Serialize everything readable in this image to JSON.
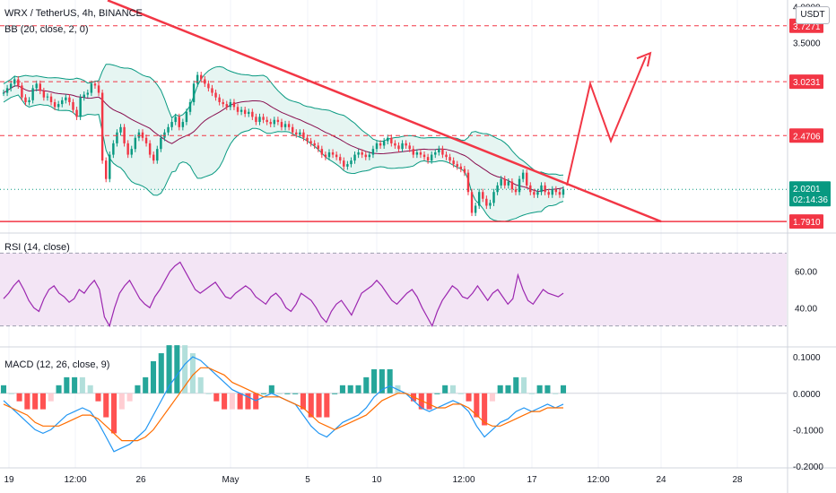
{
  "header": {
    "symbol_title": "WRX / TetherUS, 4h, BINANCE",
    "bb_label": "BB (20, close, 2, 0)",
    "rsi_label": "RSI (14, close)",
    "macd_label": "MACD (12, 26, close, 9)",
    "currency": "USDT"
  },
  "colors": {
    "red": "#f23645",
    "green": "#089981",
    "bb_line": "#089981",
    "bb_fill": "#e0f2ef",
    "basis": "#880e4f",
    "rsi_line": "#9c27b0",
    "rsi_fill": "#f3e5f5",
    "macd_line": "#2196f3",
    "signal_line": "#ff6d00"
  },
  "chart_data": {
    "type": "candlestick",
    "x_ticks": [
      "19",
      "12:00",
      "26",
      "May",
      "5",
      "10",
      "12:00",
      "17",
      "12:00",
      "24",
      "28"
    ],
    "price_axis_ticks": [
      "4.0000",
      "3.5000",
      "2.0201",
      "1.7910"
    ],
    "price_tags": {
      "levels": [
        "3.7271",
        "3.0231",
        "2.4706",
        "1.7910"
      ],
      "current_price": "2.0201",
      "countdown": "02:14:36"
    },
    "price_levels": [
      3.7271,
      3.0231,
      2.4706,
      1.791
    ],
    "current_price": 2.0201,
    "price_axis": [
      1.75,
      4.05
    ],
    "price_axis_log": true,
    "trendline": {
      "from_price": 4.1,
      "to_price": 1.791
    },
    "projection_prices": [
      2.05,
      3.0,
      2.42,
      3.32
    ],
    "bb": {
      "period": 20,
      "stddev": 2
    },
    "candles_approx": [
      2.9,
      2.95,
      3.0,
      3.05,
      2.98,
      2.85,
      2.8,
      2.82,
      2.95,
      3.0,
      2.92,
      2.85,
      2.86,
      2.8,
      2.75,
      2.78,
      2.82,
      2.85,
      2.8,
      2.72,
      2.65,
      2.85,
      2.88,
      2.9,
      3.0,
      2.98,
      2.9,
      2.25,
      2.1,
      2.3,
      2.4,
      2.5,
      2.55,
      2.4,
      2.3,
      2.35,
      2.45,
      2.5,
      2.45,
      2.4,
      2.3,
      2.25,
      2.35,
      2.45,
      2.5,
      2.55,
      2.6,
      2.65,
      2.55,
      2.6,
      2.7,
      2.8,
      3.0,
      3.1,
      3.05,
      3.0,
      2.95,
      2.9,
      2.85,
      2.8,
      2.78,
      2.75,
      2.8,
      2.75,
      2.7,
      2.72,
      2.68,
      2.7,
      2.65,
      2.6,
      2.65,
      2.62,
      2.6,
      2.58,
      2.62,
      2.6,
      2.55,
      2.58,
      2.55,
      2.5,
      2.48,
      2.5,
      2.45,
      2.42,
      2.4,
      2.38,
      2.35,
      2.3,
      2.28,
      2.32,
      2.3,
      2.28,
      2.25,
      2.2,
      2.22,
      2.25,
      2.3,
      2.32,
      2.3,
      2.28,
      2.3,
      2.35,
      2.4,
      2.38,
      2.42,
      2.45,
      2.4,
      2.38,
      2.35,
      2.4,
      2.38,
      2.35,
      2.3,
      2.32,
      2.3,
      2.28,
      2.25,
      2.3,
      2.32,
      2.35,
      2.3,
      2.28,
      2.25,
      2.22,
      2.2,
      2.18,
      2.15,
      2.0,
      1.85,
      1.9,
      2.0,
      1.95,
      1.9,
      1.92,
      2.0,
      2.05,
      2.1,
      2.05,
      2.08,
      2.02,
      2.0,
      2.1,
      2.15,
      2.05,
      2.0,
      1.98,
      2.0,
      2.05,
      2.0,
      1.98,
      2.02,
      2.0,
      1.98,
      2.02
    ],
    "rsi": {
      "period": 14,
      "axis_ticks": [
        "60.00",
        "40.00"
      ],
      "range": [
        20,
        80
      ],
      "bands": [
        70,
        30
      ],
      "values_approx": [
        45,
        48,
        52,
        55,
        50,
        44,
        40,
        38,
        45,
        50,
        52,
        48,
        46,
        43,
        45,
        50,
        48,
        52,
        55,
        50,
        35,
        30,
        40,
        48,
        52,
        55,
        50,
        45,
        42,
        40,
        46,
        50,
        55,
        60,
        63,
        65,
        60,
        55,
        50,
        48,
        50,
        52,
        54,
        50,
        46,
        45,
        48,
        50,
        52,
        50,
        46,
        44,
        42,
        46,
        48,
        45,
        40,
        38,
        42,
        48,
        46,
        44,
        40,
        35,
        32,
        38,
        42,
        44,
        40,
        36,
        42,
        48,
        50,
        52,
        55,
        52,
        48,
        44,
        42,
        45,
        48,
        50,
        46,
        40,
        35,
        30,
        38,
        44,
        48,
        52,
        50,
        46,
        45,
        48,
        52,
        48,
        44,
        48,
        50,
        46,
        42,
        45,
        58,
        50,
        44,
        42,
        46,
        50,
        48,
        47,
        46,
        48
      ]
    },
    "macd": {
      "params": [
        12,
        26,
        9
      ],
      "axis_ticks": [
        "0.1000",
        "0.0000",
        "-0.1000",
        "-0.2000"
      ],
      "range": [
        -0.2,
        0.12
      ],
      "macd_approx": [
        -0.02,
        -0.04,
        -0.06,
        -0.08,
        -0.1,
        -0.11,
        -0.1,
        -0.08,
        -0.06,
        -0.05,
        -0.04,
        -0.05,
        -0.08,
        -0.12,
        -0.16,
        -0.15,
        -0.14,
        -0.12,
        -0.1,
        -0.06,
        -0.02,
        0.02,
        0.05,
        0.08,
        0.1,
        0.09,
        0.07,
        0.05,
        0.03,
        0.01,
        0.0,
        -0.01,
        -0.02,
        -0.01,
        0.0,
        -0.01,
        -0.02,
        -0.03,
        -0.06,
        -0.09,
        -0.11,
        -0.12,
        -0.1,
        -0.08,
        -0.07,
        -0.06,
        -0.04,
        -0.01,
        0.01,
        0.02,
        0.01,
        0.0,
        -0.02,
        -0.04,
        -0.05,
        -0.04,
        -0.03,
        -0.02,
        -0.03,
        -0.05,
        -0.09,
        -0.12,
        -0.1,
        -0.08,
        -0.07,
        -0.05,
        -0.04,
        -0.05,
        -0.04,
        -0.03,
        -0.04,
        -0.03
      ],
      "signal_approx": [
        -0.03,
        -0.04,
        -0.05,
        -0.06,
        -0.08,
        -0.09,
        -0.09,
        -0.09,
        -0.08,
        -0.07,
        -0.06,
        -0.06,
        -0.07,
        -0.09,
        -0.11,
        -0.13,
        -0.13,
        -0.13,
        -0.12,
        -0.1,
        -0.07,
        -0.04,
        -0.01,
        0.02,
        0.05,
        0.07,
        0.07,
        0.06,
        0.05,
        0.03,
        0.02,
        0.01,
        0.0,
        -0.01,
        -0.01,
        -0.01,
        -0.02,
        -0.03,
        -0.04,
        -0.06,
        -0.08,
        -0.09,
        -0.1,
        -0.09,
        -0.08,
        -0.07,
        -0.06,
        -0.04,
        -0.02,
        -0.01,
        0.0,
        0.0,
        -0.01,
        -0.02,
        -0.03,
        -0.04,
        -0.04,
        -0.03,
        -0.03,
        -0.04,
        -0.06,
        -0.08,
        -0.09,
        -0.09,
        -0.08,
        -0.07,
        -0.06,
        -0.05,
        -0.05,
        -0.04,
        -0.04,
        -0.04
      ]
    }
  }
}
